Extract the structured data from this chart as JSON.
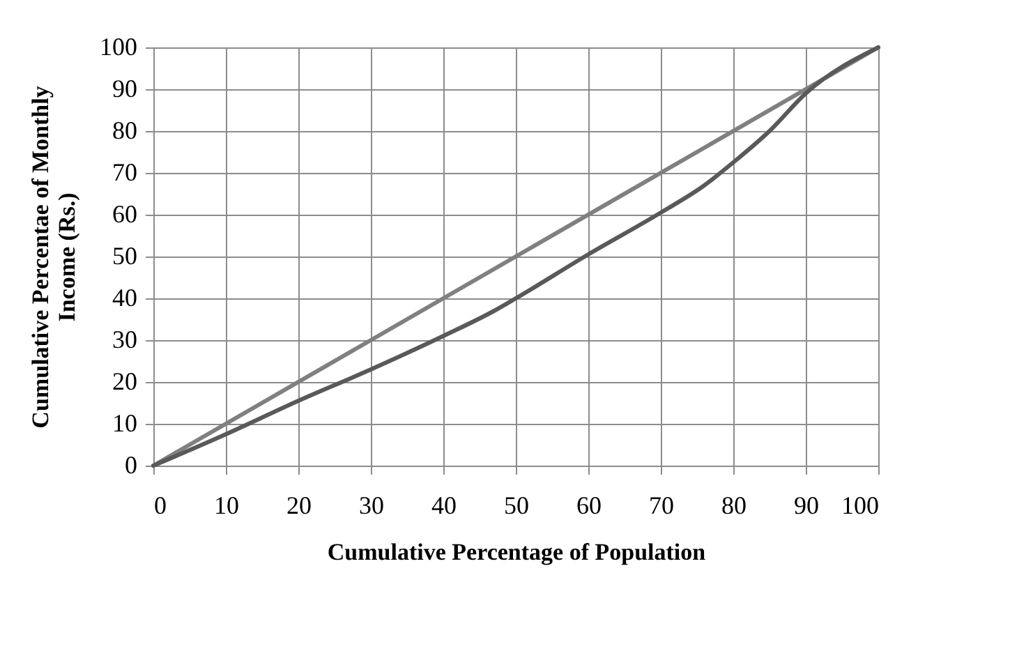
{
  "chart_data": {
    "type": "line",
    "xlabel": "Cumulative Percentage of Population",
    "ylabel": "Cumulative Percentae of Monthly\nIncome (Rs.)",
    "series": [
      {
        "color": "#808080",
        "x": [
          0,
          100
        ],
        "values": [
          0,
          100
        ]
      },
      {
        "color": "#595959",
        "x": [
          0,
          10,
          20,
          30,
          40,
          47,
          50,
          60,
          70,
          76,
          80,
          85,
          90,
          100
        ],
        "values": [
          0,
          7.5,
          15.5,
          23,
          31,
          37,
          40,
          50.5,
          60.5,
          67,
          72.5,
          80,
          89,
          100
        ]
      }
    ],
    "xlim": [
      0,
      100
    ],
    "ylim": [
      0,
      100
    ],
    "xticks": [
      0,
      10,
      20,
      30,
      40,
      50,
      60,
      70,
      80,
      90,
      100
    ],
    "yticks": [
      0,
      10,
      20,
      30,
      40,
      50,
      60,
      70,
      80,
      90,
      100
    ],
    "grid": true,
    "marker": "none",
    "line_style": "solid"
  }
}
